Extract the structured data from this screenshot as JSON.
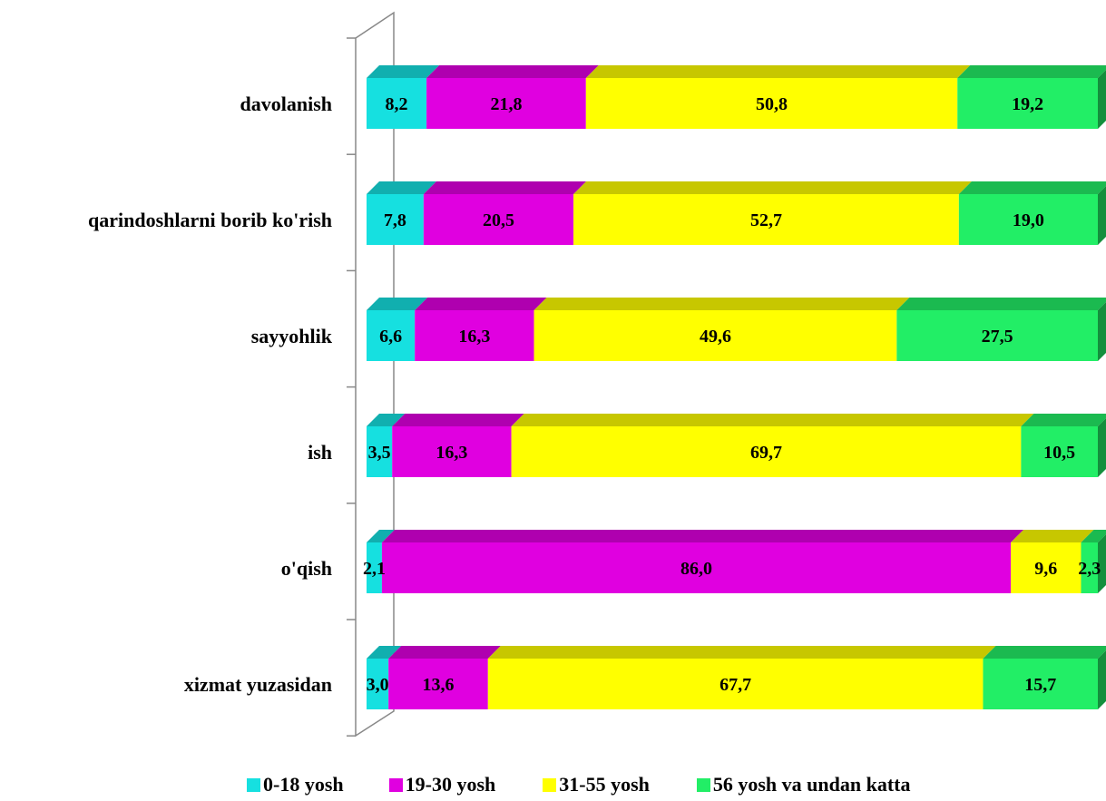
{
  "chart_data": {
    "type": "bar",
    "orientation": "horizontal",
    "stacked": "percent",
    "style": "3d",
    "categories": [
      "davolanish",
      "qarindoshlarni borib ko'rish",
      "sayyohlik",
      "ish",
      "o'qish",
      "xizmat yuzasidan"
    ],
    "series": [
      {
        "name": "0-18 yosh",
        "color": "#16E0E0",
        "values": [
          8.2,
          7.8,
          6.6,
          3.5,
          2.1,
          3.0
        ],
        "labels": [
          "8,2",
          "7,8",
          "6,6",
          "3,5",
          "2,1",
          "3,0"
        ]
      },
      {
        "name": "19-30 yosh",
        "color": "#E000E0",
        "values": [
          21.8,
          20.5,
          16.3,
          16.3,
          86.0,
          13.6
        ],
        "labels": [
          "21,8",
          "20,5",
          "16,3",
          "16,3",
          "86,0",
          "13,6"
        ]
      },
      {
        "name": "31-55 yosh",
        "color": "#FFFF00",
        "values": [
          50.8,
          52.7,
          49.6,
          69.7,
          9.6,
          67.7
        ],
        "labels": [
          "50,8",
          "52,7",
          "49,6",
          "69,7",
          "9,6",
          "67,7"
        ]
      },
      {
        "name": "56 yosh va undan katta",
        "color": "#22EE66",
        "values": [
          19.2,
          19.0,
          27.5,
          10.5,
          2.3,
          15.7
        ],
        "labels": [
          "19,2",
          "19,0",
          "27,5",
          "10,5",
          "2,3",
          "15,7"
        ]
      }
    ],
    "title": "",
    "xlabel": "",
    "ylabel": "",
    "xlim": [
      0,
      100
    ],
    "grid": false,
    "legend_position": "bottom"
  }
}
